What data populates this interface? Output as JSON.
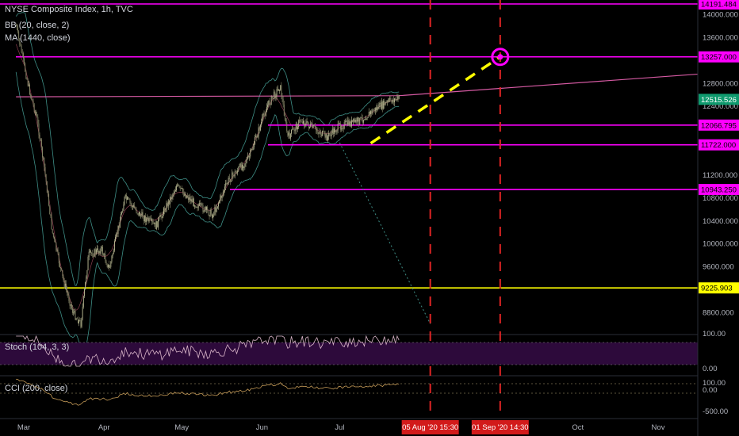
{
  "header": {
    "symbol_line": "NYSE Composite Index, 1h, TVC",
    "indicator_bb": "BB (20, close, 2)",
    "indicator_ma": "MA (1440, close)"
  },
  "panes": {
    "stoch_label": "Stoch (104, 3, 3)",
    "cci_label": "CCI (200, close)",
    "stoch_ticks": [
      "100.00",
      "0.00"
    ],
    "cci_ticks": [
      "100.00",
      "0.00",
      "-500.00"
    ]
  },
  "colors": {
    "background": "#000000",
    "magenta": "#ff00ff",
    "yellow": "#ffff00",
    "red_dashed": "#e02424",
    "candle_up": "#b8b892",
    "candle_down": "#8a8a6a",
    "bb_band": "#3e8e86",
    "ma_line": "#d65aa3",
    "stoch_fill": "#2d0a3b",
    "stoch_line": "#d8b4c8",
    "cci_line": "#c49a57",
    "price_axis_bg": "#000000",
    "time_tag_bg": "#d21a1a",
    "last_price_bg": "#0f9a6e"
  },
  "chart_data": {
    "type": "candlestick",
    "title": "NYSE Composite Index, 1h, TVC",
    "x_ticks": [
      "Mar",
      "Apr",
      "May",
      "Jun",
      "Jul",
      "Aug",
      "Sep",
      "Oct",
      "Nov"
    ],
    "y_ticks": [
      14000,
      13600,
      12800,
      12400,
      11200,
      10800,
      10400,
      10000,
      9600,
      8800
    ],
    "y_tick_labels": [
      "14000.000",
      "13600.000",
      "12800.000",
      "12400.000",
      "11200.000",
      "10800.000",
      "10400.000",
      "10000.000",
      "9600.000",
      "8800.000"
    ],
    "ylim": [
      8500,
      14300
    ],
    "price_path": [
      [
        "2020-02-27",
        13800
      ],
      [
        "2020-03-03",
        12700
      ],
      [
        "2020-03-06",
        12200
      ],
      [
        "2020-03-09",
        11300
      ],
      [
        "2020-03-12",
        10200
      ],
      [
        "2020-03-16",
        9400
      ],
      [
        "2020-03-20",
        8800
      ],
      [
        "2020-03-23",
        8600
      ],
      [
        "2020-03-26",
        9800
      ],
      [
        "2020-03-31",
        9900
      ],
      [
        "2020-04-03",
        9550
      ],
      [
        "2020-04-09",
        10800
      ],
      [
        "2020-04-15",
        10500
      ],
      [
        "2020-04-21",
        10300
      ],
      [
        "2020-04-29",
        11000
      ],
      [
        "2020-05-06",
        10700
      ],
      [
        "2020-05-13",
        10500
      ],
      [
        "2020-05-19",
        11100
      ],
      [
        "2020-05-27",
        11500
      ],
      [
        "2020-06-03",
        12400
      ],
      [
        "2020-06-08",
        12750
      ],
      [
        "2020-06-11",
        11850
      ],
      [
        "2020-06-16",
        12150
      ],
      [
        "2020-06-23",
        11950
      ],
      [
        "2020-06-26",
        11850
      ],
      [
        "2020-07-01",
        12050
      ],
      [
        "2020-07-09",
        12150
      ],
      [
        "2020-07-15",
        12350
      ],
      [
        "2020-07-21",
        12500
      ],
      [
        "2020-07-24",
        12530
      ]
    ],
    "ma_1440": [
      [
        "2020-02-27",
        12560
      ],
      [
        "2020-07-24",
        12580
      ],
      [
        "2020-11-30",
        13000
      ]
    ],
    "horizontal_levels": [
      {
        "value": 14191.484,
        "label": "14191.484",
        "color": "#ff00ff"
      },
      {
        "value": 13257.0,
        "label": "13257.000",
        "color": "#ff00ff"
      },
      {
        "value": 12066.795,
        "label": "12066.795",
        "color": "#ff00ff"
      },
      {
        "value": 11722.0,
        "label": "11722.000",
        "color": "#ff00ff"
      },
      {
        "value": 10943.25,
        "label": "10943.250",
        "color": "#ff00ff"
      },
      {
        "value": 9225.903,
        "label": "9225.903",
        "color": "#ffff00"
      }
    ],
    "last_price": {
      "value": 12515.526,
      "label": "12515.526"
    },
    "projection_line": {
      "from": [
        "2020-07-13",
        11750
      ],
      "to": [
        "2020-09-01",
        13257
      ],
      "color": "#ffff00",
      "dashed": true
    },
    "projection_circle": {
      "x": "2020-09-01",
      "y": 13257,
      "color": "#ff00ff"
    },
    "dotted_trendline": {
      "from": [
        "2020-07-01",
        11760
      ],
      "to": [
        "2020-08-05",
        8600
      ],
      "color": "#3e8e86"
    },
    "vertical_markers": [
      {
        "date": "2020-08-05",
        "label": "05 Aug '20   15:30"
      },
      {
        "date": "2020-09-01",
        "label": "01 Sep '20   14:30"
      }
    ],
    "stoch_range": [
      0,
      100
    ],
    "cci_ticks": [
      100,
      0,
      -500
    ]
  }
}
